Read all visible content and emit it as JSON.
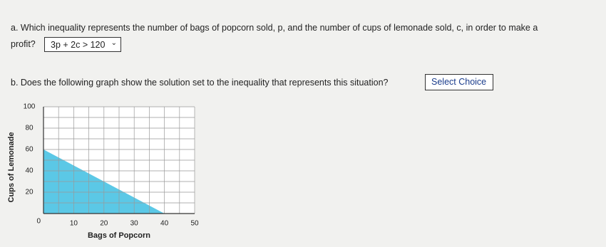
{
  "question_a": {
    "lines": [
      "a. Which inequality represents the number of bags of popcorn sold, p, and the number of cups of lemonade sold, c, in order to make a",
      "profit?"
    ],
    "answer": "3p + 2c > 120"
  },
  "question_b": {
    "text": "b. Does the following graph show the solution set to the inequality that represents this situation?",
    "answer": "Select Choice"
  },
  "graph": {
    "x_label": "Bags of Popcorn",
    "y_label": "Cups of Lemonade",
    "xlim": [
      0,
      50
    ],
    "ylim": [
      0,
      100
    ],
    "xticks": [
      10,
      20,
      30,
      40,
      50
    ],
    "yticks": [
      20,
      40,
      60,
      80,
      100
    ],
    "origin_label": "0",
    "x_grid_step": 5,
    "y_grid_step": 10,
    "shaded_region": {
      "x": [
        0,
        0,
        40
      ],
      "y": [
        0,
        60,
        0
      ],
      "color": "#5bc8e6"
    }
  }
}
